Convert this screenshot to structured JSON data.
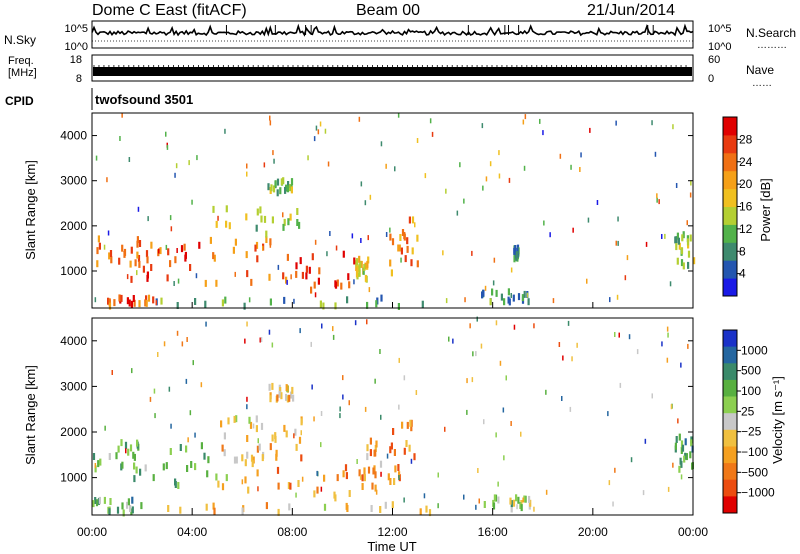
{
  "header": {
    "station": "Dome C East (fitACF)",
    "beam": "Beam 00",
    "date": "21/Jun/2014"
  },
  "strips": {
    "nsky_label": "N.Sky",
    "nsearch_label": "N.Search",
    "nsearch_dots": "………",
    "noise_ticks": [
      "10^5",
      "10^0"
    ],
    "freq_label": [
      "Freq.",
      "[MHz]"
    ],
    "freq_ticks": [
      "18",
      "8"
    ],
    "nave_label": "Nave",
    "nave_dots": "……",
    "nave_ticks": [
      "60",
      "0"
    ],
    "cpid_label": "CPID",
    "cpid_value": "twofsound 3501"
  },
  "chart_data": [
    {
      "type": "heatmap",
      "name": "power",
      "ylabel": "Slant Range [km]",
      "yticks": [
        1000,
        2000,
        3000,
        4000
      ],
      "ylim": [
        180,
        4500
      ],
      "xlim": [
        0,
        24
      ],
      "colorbar": {
        "label": "Power [dB]",
        "ticks": [
          "4",
          "8",
          "12",
          "16",
          "20",
          "24",
          "28"
        ],
        "colors": [
          "#1a1ae6",
          "#2456b0",
          "#3e8a6e",
          "#52b24a",
          "#b4cf32",
          "#f0c020",
          "#f5a018",
          "#f07014",
          "#e83a10",
          "#e00000"
        ]
      },
      "regions": [
        {
          "t0": 0.0,
          "t1": 2.0,
          "r0": 1100,
          "r1": 1750,
          "v": 0.75
        },
        {
          "t0": 1.5,
          "t1": 4.5,
          "r0": 800,
          "r1": 1700,
          "v": 0.85
        },
        {
          "t0": 4.5,
          "t1": 8.0,
          "r0": 700,
          "r1": 1800,
          "v": 0.8
        },
        {
          "t0": 8.0,
          "t1": 10.6,
          "r0": 500,
          "r1": 1400,
          "v": 0.9
        },
        {
          "t0": 10.5,
          "t1": 11.0,
          "r0": 800,
          "r1": 1250,
          "v": 0.55
        },
        {
          "t0": 11.8,
          "t1": 13.0,
          "r0": 900,
          "r1": 2200,
          "v": 0.7
        },
        {
          "t0": 4.5,
          "t1": 8.5,
          "r0": 1800,
          "r1": 2400,
          "v": 0.45
        },
        {
          "t0": 7.0,
          "t1": 8.0,
          "r0": 2700,
          "r1": 3000,
          "v": 0.4
        },
        {
          "t0": 0.5,
          "t1": 2.5,
          "r0": 200,
          "r1": 400,
          "v": 0.85
        },
        {
          "t0": 2.5,
          "t1": 13.5,
          "r0": 200,
          "r1": 400,
          "v": 0.25
        },
        {
          "t0": 15.5,
          "t1": 17.5,
          "r0": 300,
          "r1": 550,
          "v": 0.25
        },
        {
          "t0": 16.8,
          "t1": 17.0,
          "r0": 1250,
          "r1": 1500,
          "v": 0.2
        },
        {
          "t0": 23.2,
          "t1": 24.0,
          "r0": 1100,
          "r1": 1800,
          "v": 0.4
        }
      ]
    },
    {
      "type": "heatmap",
      "name": "velocity",
      "ylabel": "Slant Range [km]",
      "xlabel": "Time UT",
      "xticks": [
        "00:00",
        "04:00",
        "08:00",
        "12:00",
        "16:00",
        "20:00",
        "00:00"
      ],
      "yticks": [
        1000,
        2000,
        3000,
        4000
      ],
      "ylim": [
        180,
        4500
      ],
      "xlim": [
        0,
        24
      ],
      "colorbar": {
        "label": "Velocity [m s⁻¹]",
        "ticks": [
          "1000",
          "500",
          "100",
          "25",
          "−25",
          "−100",
          "−500",
          "−1000"
        ],
        "colors": [
          "#1a32c8",
          "#2466a0",
          "#3a8a6a",
          "#58b040",
          "#8ccf50",
          "#c8c8c8",
          "#f0c040",
          "#f5a020",
          "#f07818",
          "#ec4c10",
          "#e00000"
        ]
      },
      "regions": [
        {
          "t0": 0.0,
          "t1": 2.0,
          "r0": 1100,
          "r1": 1800,
          "v": 0.3
        },
        {
          "t0": 1.5,
          "t1": 5.0,
          "r0": 800,
          "r1": 1700,
          "v": 0.35
        },
        {
          "t0": 5.0,
          "t1": 7.0,
          "r0": 700,
          "r1": 1800,
          "v": 0.6
        },
        {
          "t0": 7.0,
          "t1": 10.6,
          "r0": 500,
          "r1": 1700,
          "v": 0.75
        },
        {
          "t0": 10.6,
          "t1": 11.5,
          "r0": 700,
          "r1": 1800,
          "v": 0.72
        },
        {
          "t0": 11.8,
          "t1": 13.0,
          "r0": 900,
          "r1": 2200,
          "v": 0.75
        },
        {
          "t0": 5.0,
          "t1": 8.5,
          "r0": 1800,
          "r1": 2300,
          "v": 0.55
        },
        {
          "t0": 7.0,
          "t1": 8.0,
          "r0": 2700,
          "r1": 3000,
          "v": 0.6
        },
        {
          "t0": 0.0,
          "t1": 2.0,
          "r0": 200,
          "r1": 500,
          "v": 0.3
        },
        {
          "t0": 2.0,
          "t1": 13.5,
          "r0": 200,
          "r1": 400,
          "v": 0.6
        },
        {
          "t0": 15.5,
          "t1": 17.5,
          "r0": 300,
          "r1": 550,
          "v": 0.4
        },
        {
          "t0": 23.2,
          "t1": 24.0,
          "r0": 1100,
          "r1": 1900,
          "v": 0.3
        }
      ]
    }
  ]
}
